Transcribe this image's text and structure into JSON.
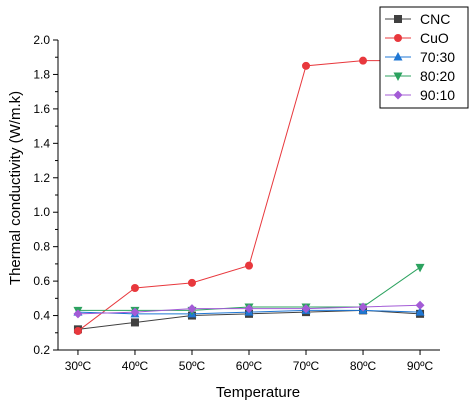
{
  "chart_data": {
    "type": "line",
    "title": "",
    "xlabel": "Temperature",
    "ylabel": "Thermal conductivity (W/m.k)",
    "categories": [
      "30ºC",
      "40ºC",
      "50ºC",
      "60ºC",
      "70ºC",
      "80ºC",
      "90ºC"
    ],
    "ylim": [
      0.2,
      2.0
    ],
    "yticks": [
      "0.2",
      "0.4",
      "0.6",
      "0.8",
      "1.0",
      "1.2",
      "1.4",
      "1.6",
      "1.8",
      "2.0"
    ],
    "grid": false,
    "legend_position": "top-right",
    "series": [
      {
        "name": "CNC",
        "color": "#404040",
        "marker": "square",
        "values": [
          0.32,
          0.36,
          0.4,
          0.41,
          0.42,
          0.43,
          0.41
        ]
      },
      {
        "name": "CuO",
        "color": "#e8383d",
        "marker": "circle",
        "values": [
          0.31,
          0.56,
          0.59,
          0.69,
          1.85,
          1.88,
          1.88
        ]
      },
      {
        "name": "70:30",
        "color": "#1f77d4",
        "marker": "triangle-up",
        "values": [
          0.42,
          0.41,
          0.41,
          0.42,
          0.43,
          0.43,
          0.42
        ]
      },
      {
        "name": "80:20",
        "color": "#2ca25f",
        "marker": "triangle-down",
        "values": [
          0.43,
          0.43,
          0.43,
          0.45,
          0.45,
          0.45,
          0.68
        ]
      },
      {
        "name": "90:10",
        "color": "#a35bd6",
        "marker": "diamond",
        "values": [
          0.41,
          0.42,
          0.44,
          0.44,
          0.44,
          0.45,
          0.46
        ]
      }
    ]
  }
}
